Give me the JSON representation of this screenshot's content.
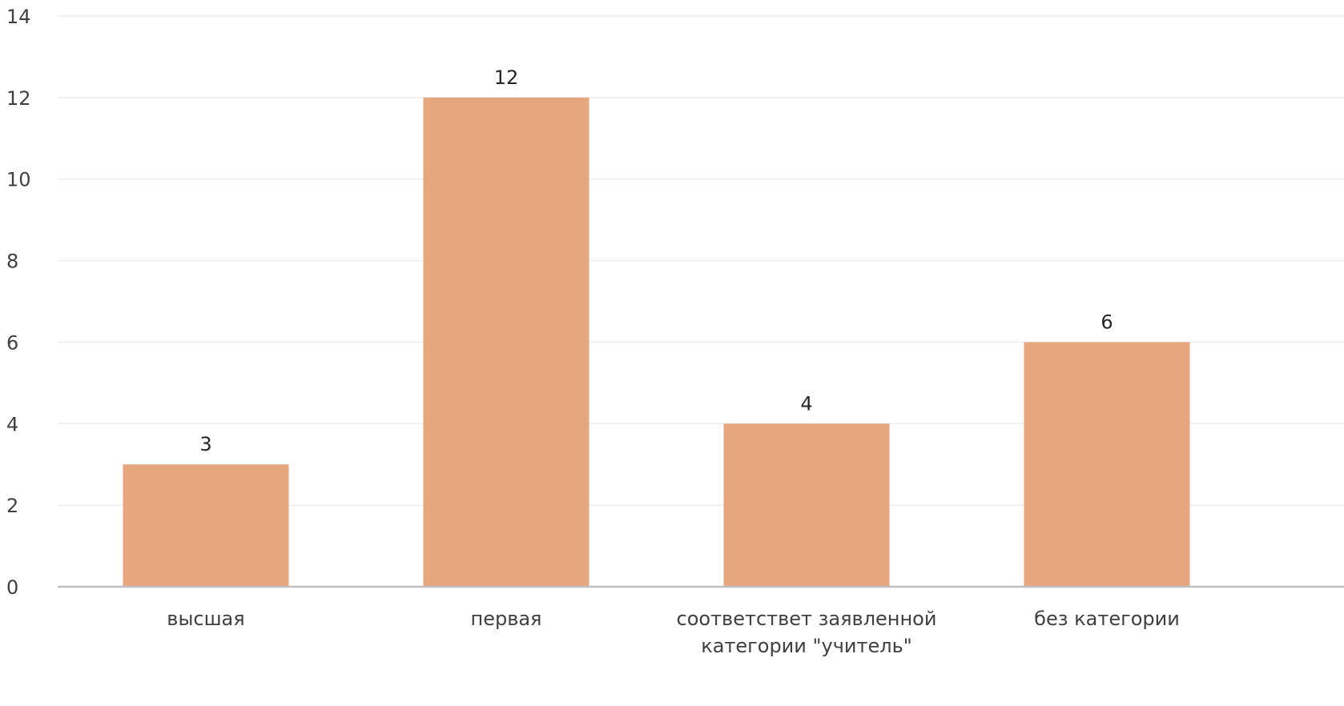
{
  "chart_data": {
    "type": "bar",
    "categories": [
      [
        "высшая"
      ],
      [
        "первая"
      ],
      [
        "соответствет заявленной",
        "категории \"учитель\""
      ],
      [
        "без категории"
      ]
    ],
    "values": [
      3,
      12,
      4,
      6
    ],
    "data_labels": [
      "3",
      "12",
      "4",
      "6"
    ],
    "title": "",
    "xlabel": "",
    "ylabel": "",
    "ylim": [
      0,
      14
    ],
    "yticks": [
      0,
      2,
      4,
      6,
      8,
      10,
      12,
      14
    ],
    "ytick_labels": [
      "0",
      "2",
      "4",
      "6",
      "8",
      "10",
      "12",
      "14"
    ],
    "grid": true,
    "legend": "none",
    "colors": {
      "bar": "#E6A67E",
      "grid": "#EDEDED",
      "axis": "#BFBFBF",
      "text": "#404040"
    }
  }
}
